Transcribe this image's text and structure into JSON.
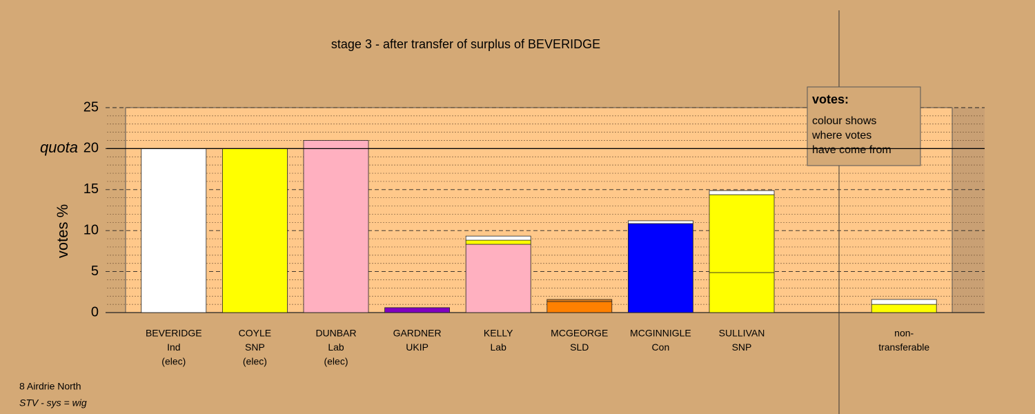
{
  "chart_data": {
    "type": "stacked_bar",
    "title": "stage 3 - after transfer of surplus of BEVERIDGE",
    "y_label": "votes %",
    "quota_label": "quota",
    "quota": 20,
    "categories": [
      [
        "BEVERIDGE",
        "Ind",
        "(elec)"
      ],
      [
        "COYLE",
        "SNP",
        "(elec)"
      ],
      [
        "DUNBAR",
        "Lab",
        "(elec)"
      ],
      [
        "GARDNER",
        "UKIP"
      ],
      [
        "KELLY",
        "Lab"
      ],
      [
        "MCGEORGE",
        "SLD"
      ],
      [
        "MCGINNIGLE",
        "Con"
      ],
      [
        "SULLIVAN",
        "SNP"
      ],
      null,
      [
        "non-",
        "transferable"
      ]
    ],
    "series": [
      {
        "values": [
          20,
          20,
          21,
          0.6,
          8.33,
          1.35,
          10.86,
          4.88,
          null,
          1.0
        ],
        "colors": [
          "#ffffff",
          "#ffff00",
          "#ffb0c0",
          "#8000c0",
          "#ffb0c0",
          "#ff8000",
          "#0000ff",
          "#ffff00",
          null,
          "#ffff00"
        ]
      },
      {
        "values": [
          null,
          null,
          null,
          null,
          0.5,
          0.25,
          0.34,
          9.5,
          null,
          0.6
        ],
        "colors": [
          null,
          null,
          null,
          null,
          "#ffff00",
          "#e08020",
          "#ffffff",
          "#ffff00",
          null,
          "#ffffff"
        ]
      },
      {
        "values": [
          null,
          null,
          null,
          null,
          0.5,
          null,
          null,
          0.5,
          null,
          null
        ],
        "colors": [
          null,
          null,
          null,
          null,
          "#ffffff",
          null,
          null,
          "#ffffff",
          null,
          null
        ]
      }
    ],
    "ylim": [
      0,
      25
    ],
    "yticks": [
      0,
      5,
      10,
      15,
      20,
      25
    ],
    "minor_yticks": [
      1,
      2,
      3,
      4,
      6,
      7,
      8,
      9,
      11,
      12,
      13,
      14,
      16,
      17,
      18,
      19,
      21,
      22,
      23,
      24
    ],
    "legend": {
      "title": "votes:",
      "lines": [
        "colour shows",
        "where votes",
        "have come from"
      ]
    },
    "footnotes": [
      "8 Airdrie North",
      "STV - sys = wig"
    ]
  }
}
